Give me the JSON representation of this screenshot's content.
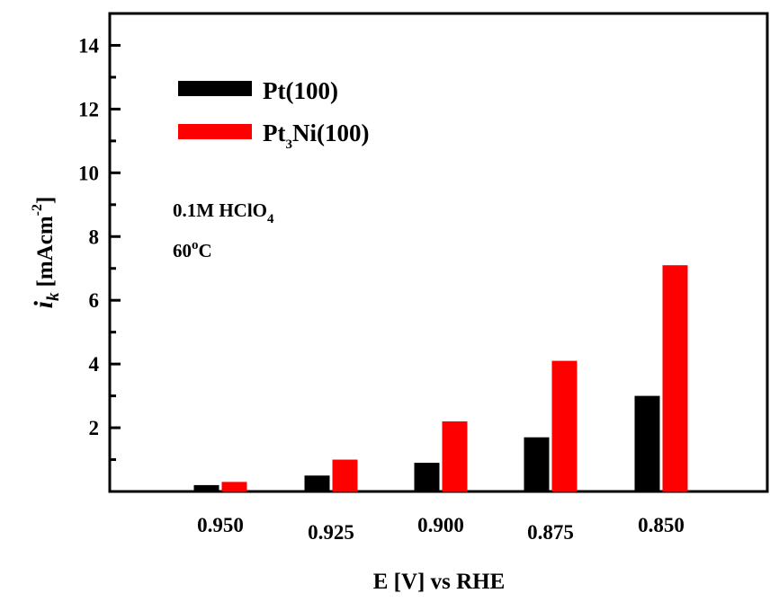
{
  "chart_data": {
    "type": "bar",
    "categories": [
      "0.950",
      "0.925",
      "0.900",
      "0.875",
      "0.850"
    ],
    "series": [
      {
        "name": "Pt(100)",
        "name_base": "Pt(100)",
        "color": "#000000",
        "values": [
          0.2,
          0.5,
          0.9,
          1.7,
          3.0
        ]
      },
      {
        "name": "Pt3Ni(100)",
        "name_base": "Pt",
        "name_sub": "3",
        "name_rest": "Ni(100)",
        "color": "#ff0000",
        "values": [
          0.3,
          1.0,
          2.2,
          4.1,
          7.1
        ]
      }
    ],
    "xlabel": "E [V] vs RHE",
    "ylabel": "i_k [mAcm^-2]",
    "ylabel_italic": "i",
    "ylabel_sub": "k",
    "ylabel_rest": "[mAcm",
    "ylabel_sup": "-2",
    "ylabel_close": "]",
    "ylim": [
      0,
      15
    ],
    "yticks": [
      2,
      4,
      6,
      8,
      10,
      12,
      14
    ],
    "legend_position": "top-left",
    "annotations": {
      "electrolyte": "0.1M HClO4",
      "electrolyte_base": "0.1M HClO",
      "electrolyte_sub": "4",
      "temperature": "60oC",
      "temperature_base": "60",
      "temperature_sup": "o",
      "temperature_unit": "C"
    }
  }
}
